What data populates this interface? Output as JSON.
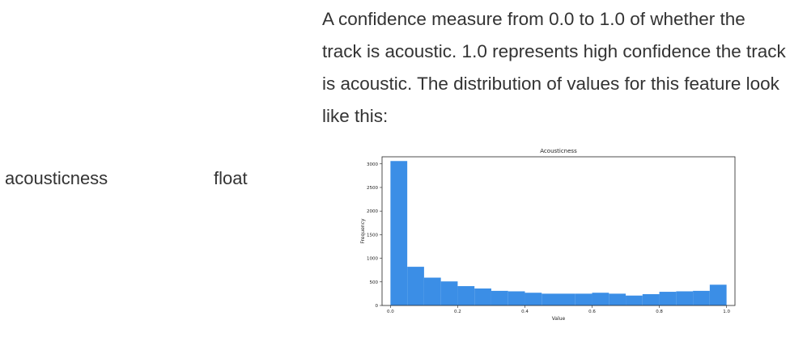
{
  "row": {
    "key": "acousticness",
    "type": "float",
    "description": "A confidence measure from 0.0 to 1.0 of whether the track is acoustic. 1.0 represents high confidence the track is acoustic. The distribution of values for this feature look like this:"
  },
  "chart_data": {
    "type": "bar",
    "title": "Acousticness",
    "xlabel": "Value",
    "ylabel": "Frequency",
    "xlim": [
      0.0,
      1.0
    ],
    "ylim": [
      0,
      3150
    ],
    "bin_width": 0.05,
    "x": [
      0.0,
      0.05,
      0.1,
      0.15,
      0.2,
      0.25,
      0.3,
      0.35,
      0.4,
      0.45,
      0.5,
      0.55,
      0.6,
      0.65,
      0.7,
      0.75,
      0.8,
      0.85,
      0.9,
      0.95
    ],
    "values": [
      3060,
      820,
      590,
      510,
      410,
      360,
      310,
      300,
      270,
      250,
      250,
      250,
      270,
      250,
      210,
      240,
      290,
      300,
      310,
      440
    ],
    "xticks": [
      "0.0",
      "0.2",
      "0.4",
      "0.6",
      "0.8",
      "1.0"
    ],
    "xtick_values": [
      0.0,
      0.2,
      0.4,
      0.6,
      0.8,
      1.0
    ],
    "yticks": [
      "0",
      "500",
      "1000",
      "1500",
      "2000",
      "2500",
      "3000"
    ],
    "ytick_values": [
      0,
      500,
      1000,
      1500,
      2000,
      2500,
      3000
    ],
    "bar_color": "#3b8ee6",
    "grid": false
  }
}
